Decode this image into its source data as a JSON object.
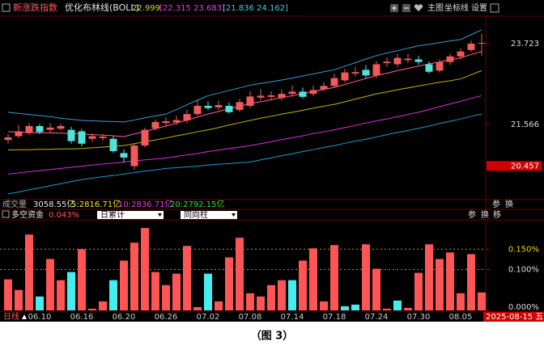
{
  "chart_data": [
    {
      "type": "candlestick",
      "title": "新涨跌指数",
      "indicator": "优化布林线(BOLL)",
      "indicator_values": [
        22.999,
        "[22.315 23.683]",
        "[21.836 24.162]"
      ],
      "indicator_colors": [
        "#d8d830",
        "#e040e0",
        "#40c8e0"
      ],
      "toolbar": [
        "主图",
        "坐标线",
        "设置"
      ],
      "open": [
        21.15,
        21.25,
        21.33,
        21.52,
        21.42,
        21.45,
        21.42,
        21.38,
        21.18,
        21.2,
        21.18,
        20.8,
        20.45,
        21.0,
        21.46,
        21.6,
        21.62,
        21.67,
        21.84,
        22.06,
        22.02,
        22.06,
        21.95,
        22.06,
        22.28,
        22.3,
        22.27,
        22.38,
        22.44,
        22.38,
        22.5,
        22.59,
        22.74,
        22.92,
        23.02,
        22.87,
        23.2,
        23.17,
        23.28,
        23.3,
        23.17,
        23.0,
        23.23,
        23.38,
        23.55,
        23.72
      ],
      "high": [
        21.3,
        21.55,
        21.6,
        21.58,
        21.6,
        21.58,
        21.5,
        21.45,
        21.32,
        21.3,
        21.25,
        20.9,
        21.05,
        21.48,
        21.7,
        21.75,
        21.8,
        21.95,
        22.2,
        22.18,
        22.2,
        22.15,
        22.25,
        22.45,
        22.5,
        22.45,
        22.5,
        22.6,
        22.55,
        22.6,
        22.7,
        22.92,
        23.05,
        23.1,
        23.15,
        23.25,
        23.35,
        23.45,
        23.45,
        23.4,
        23.25,
        23.3,
        23.45,
        23.6,
        23.8,
        23.98
      ],
      "low": [
        21.05,
        21.2,
        21.28,
        21.3,
        21.35,
        21.4,
        21.05,
        20.98,
        21.1,
        21.12,
        20.8,
        20.55,
        20.35,
        20.95,
        21.4,
        21.5,
        21.55,
        21.6,
        21.8,
        21.95,
        21.95,
        21.85,
        21.9,
        22.0,
        22.2,
        22.22,
        22.2,
        22.3,
        22.25,
        22.32,
        22.45,
        22.55,
        22.68,
        22.85,
        22.8,
        22.8,
        23.1,
        23.1,
        23.2,
        23.15,
        22.92,
        22.95,
        23.15,
        23.3,
        23.5,
        23.4
      ],
      "close": [
        21.22,
        21.38,
        21.52,
        21.36,
        21.48,
        21.52,
        21.12,
        21.05,
        21.25,
        21.24,
        20.85,
        20.68,
        21.0,
        21.42,
        21.63,
        21.65,
        21.68,
        21.84,
        22.06,
        22.0,
        22.08,
        21.89,
        22.16,
        22.31,
        22.33,
        22.34,
        22.38,
        22.44,
        22.3,
        22.48,
        22.59,
        22.8,
        22.95,
        22.96,
        22.87,
        23.17,
        23.24,
        23.34,
        23.32,
        23.23,
        22.97,
        23.23,
        23.38,
        23.51,
        23.72,
        23.74
      ],
      "up_color": "#f25a5a",
      "down_color": "#4fe3dc",
      "series": [
        {
          "color": "#3a9bd0",
          "values": [
            21.89,
            21.86,
            21.83,
            21.8,
            21.77,
            21.73,
            21.7,
            21.67,
            21.66,
            21.65,
            21.64,
            21.63,
            21.68,
            21.74,
            21.79,
            21.84,
            21.96,
            22.09,
            22.21,
            22.33,
            22.4,
            22.47,
            22.54,
            22.61,
            22.66,
            22.7,
            22.75,
            22.8,
            22.86,
            22.91,
            22.97,
            23.02,
            23.12,
            23.21,
            23.31,
            23.4,
            23.47,
            23.53,
            23.6,
            23.66,
            23.7,
            23.75,
            23.79,
            23.83,
            23.96,
            24.09
          ]
        },
        {
          "color": "#ff5fa0",
          "values": [
            21.37,
            21.36,
            21.35,
            21.34,
            21.34,
            21.33,
            21.32,
            21.31,
            21.29,
            21.28,
            21.26,
            21.24,
            21.31,
            21.38,
            21.45,
            21.52,
            21.6,
            21.68,
            21.76,
            21.84,
            21.91,
            21.98,
            22.05,
            22.12,
            22.17,
            22.22,
            22.28,
            22.33,
            22.39,
            22.44,
            22.5,
            22.55,
            22.63,
            22.71,
            22.79,
            22.87,
            22.93,
            23.0,
            23.06,
            23.12,
            23.18,
            23.23,
            23.29,
            23.34,
            23.43,
            23.51
          ]
        },
        {
          "color": "#c8b400",
          "values": [
            20.88,
            20.89,
            20.89,
            20.9,
            20.9,
            20.91,
            20.91,
            20.92,
            20.94,
            20.96,
            20.98,
            21.0,
            21.05,
            21.1,
            21.15,
            21.2,
            21.26,
            21.31,
            21.37,
            21.42,
            21.48,
            21.55,
            21.61,
            21.67,
            21.73,
            21.78,
            21.84,
            21.89,
            21.94,
            22.0,
            22.05,
            22.1,
            22.17,
            22.24,
            22.31,
            22.38,
            22.43,
            22.49,
            22.54,
            22.59,
            22.64,
            22.69,
            22.73,
            22.78,
            22.89,
            23.0
          ]
        },
        {
          "color": "#d830d8",
          "values": [
            20.24,
            20.27,
            20.3,
            20.33,
            20.36,
            20.39,
            20.42,
            20.45,
            20.48,
            20.51,
            20.53,
            20.56,
            20.59,
            20.62,
            20.64,
            20.67,
            20.71,
            20.75,
            20.79,
            20.84,
            20.88,
            20.92,
            20.96,
            21.0,
            21.05,
            21.1,
            21.16,
            21.21,
            21.26,
            21.32,
            21.37,
            21.42,
            21.48,
            21.54,
            21.6,
            21.66,
            21.71,
            21.77,
            21.83,
            21.89,
            21.96,
            22.04,
            22.11,
            22.18,
            22.26,
            22.33
          ]
        },
        {
          "color": "#1e9ccc",
          "values": [
            19.71,
            19.76,
            19.82,
            19.87,
            19.93,
            19.98,
            20.04,
            20.09,
            20.13,
            20.17,
            20.2,
            20.24,
            20.28,
            20.32,
            20.35,
            20.39,
            20.41,
            20.43,
            20.45,
            20.48,
            20.5,
            20.52,
            20.54,
            20.56,
            20.62,
            20.67,
            20.73,
            20.78,
            20.84,
            20.89,
            20.95,
            21.0,
            21.06,
            21.12,
            21.17,
            21.23,
            21.29,
            21.35,
            21.4,
            21.46,
            21.52,
            21.59,
            21.65,
            21.71,
            21.78,
            21.84
          ]
        }
      ],
      "ylim": [
        19.6,
        24.41
      ],
      "yticks": [
        21.566,
        23.723
      ],
      "last_value": 20.457,
      "volume": {
        "label": "成交量",
        "items": [
          "3058.55亿",
          "5:2816.71亿",
          "10:2836.71亿",
          "20:2792.15亿"
        ],
        "colors": [
          "#e8e8e8",
          "#e8e830",
          "#e040e0",
          "#30e030"
        ],
        "buttons": [
          "参",
          "换"
        ]
      }
    },
    {
      "type": "bar",
      "title": "多空资金",
      "current": {
        "value": 0.043,
        "label": "0.043%"
      },
      "options": [
        "日累计",
        "同向柱"
      ],
      "buttons": [
        "参",
        "换",
        "移"
      ],
      "categories": [
        null,
        null,
        null,
        "06.10",
        null,
        null,
        null,
        "06.16",
        null,
        null,
        null,
        "06.20",
        null,
        null,
        null,
        "06.26",
        null,
        null,
        null,
        "07.02",
        null,
        null,
        null,
        "07.08",
        null,
        null,
        null,
        "07.14",
        null,
        null,
        null,
        "07.18",
        null,
        null,
        null,
        "07.24",
        null,
        null,
        null,
        "07.30",
        null,
        null,
        null,
        "08.05",
        null,
        null
      ],
      "values": [
        0.076,
        0.05,
        0.186,
        0.034,
        0.126,
        0.074,
        0.094,
        0.15,
        0.004,
        0.022,
        0.074,
        0.122,
        0.166,
        0.202,
        0.094,
        0.062,
        0.09,
        0.158,
        0.008,
        0.09,
        0.022,
        0.13,
        0.178,
        0.042,
        0.034,
        0.062,
        0.074,
        0.074,
        0.122,
        0.152,
        0.022,
        0.16,
        0.01,
        0.014,
        0.162,
        0.102,
        0.004,
        0.024,
        0.006,
        0.092,
        0.162,
        0.126,
        0.142,
        0.042,
        0.138,
        0.044
      ],
      "colors": [
        "#f55",
        "#f55",
        "#f55",
        "#4ee",
        "#f55",
        "#f55",
        "#4ee",
        "#f55",
        "#f55",
        "#f55",
        "#4ee",
        "#f55",
        "#f55",
        "#f55",
        "#f55",
        "#f55",
        "#f55",
        "#f55",
        "#f55",
        "#4ee",
        "#f55",
        "#f55",
        "#f55",
        "#f55",
        "#f55",
        "#f55",
        "#f55",
        "#4ee",
        "#f55",
        "#f55",
        "#f55",
        "#f55",
        "#4ee",
        "#4ee",
        "#f55",
        "#f55",
        "#f55",
        "#4ee",
        "#f55",
        "#f55",
        "#f55",
        "#f55",
        "#f55",
        "#f55",
        "#f55",
        "#f55"
      ],
      "ylim": [
        0,
        0.216
      ],
      "yticks": [
        {
          "value": 0,
          "label": "0.000%"
        },
        {
          "value": 0.1,
          "label": "0.100%"
        },
        {
          "value": 0.15,
          "label": "0.150%"
        }
      ],
      "grid": true,
      "xaxis_label": "日线",
      "cursor_date": "2025-08-15 五"
    }
  ],
  "caption": "（图 3）"
}
